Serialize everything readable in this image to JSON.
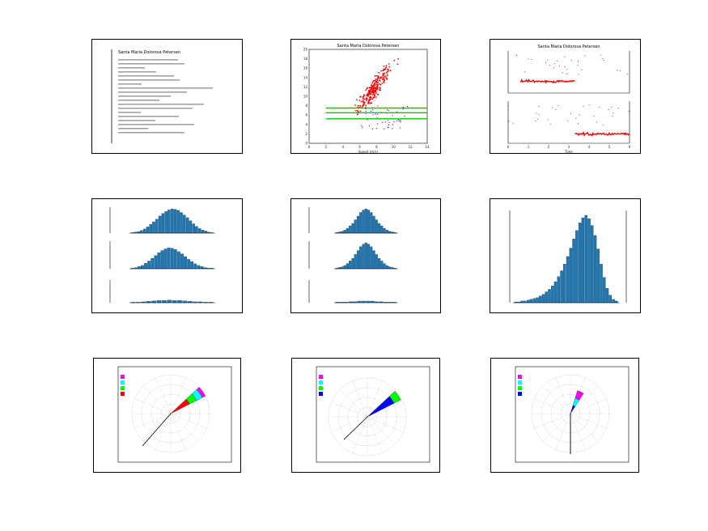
{
  "panels": [
    {
      "type": "table",
      "title": "Santa Maria Dolorosa Petersen",
      "lines": [
        "",
        "",
        "",
        "",
        "",
        "",
        "",
        "",
        "",
        "",
        "",
        "",
        "",
        "",
        "",
        "",
        "",
        "",
        ""
      ]
    },
    {
      "type": "scatter",
      "title": "Santa Maria Dolorosa Petersen",
      "xlabel": "Speed (m/s)",
      "ylabel": "",
      "xlim": [
        0,
        14
      ],
      "ylim": [
        0,
        20
      ],
      "xticks": [
        0,
        2,
        4,
        6,
        8,
        10,
        12,
        14
      ],
      "yticks": [
        0,
        2,
        4,
        6,
        8,
        10,
        12,
        14,
        16,
        18,
        20
      ],
      "series": [
        {
          "name": "",
          "color": "#ff0000"
        },
        {
          "name": "",
          "color": "#0000ff"
        }
      ],
      "hlines": [
        5.2,
        6.5,
        7.5
      ],
      "hline_color": "#00cc00"
    },
    {
      "type": "line",
      "title": "Santa Maria Dolorosa Petersen",
      "xlabel": "Time",
      "xticks": [
        0,
        1,
        2,
        3,
        4,
        5,
        6
      ],
      "colors": [
        "#ff0000",
        "#0000ff"
      ]
    },
    {
      "type": "bar",
      "title": "",
      "subplots": 3,
      "values": [
        [
          1,
          2,
          3,
          5,
          8,
          12,
          17,
          22,
          27,
          33,
          38,
          42,
          45,
          47,
          46,
          44,
          40,
          35,
          30,
          24,
          18,
          13,
          9,
          6,
          4,
          2,
          1
        ],
        [
          1,
          2,
          4,
          6,
          10,
          14,
          19,
          24,
          29,
          33,
          36,
          38,
          37,
          35,
          31,
          27,
          22,
          17,
          13,
          9,
          6,
          4,
          2,
          1,
          1
        ],
        [
          1,
          1,
          2,
          3,
          4,
          5,
          5,
          6,
          5,
          5,
          4,
          3,
          2,
          2,
          1,
          1
        ]
      ],
      "color": "#1f77b4"
    },
    {
      "type": "bar",
      "title": "",
      "subplots": 3,
      "values": [
        [
          1,
          2,
          3,
          5,
          8,
          12,
          16,
          22,
          28,
          34,
          38,
          40,
          38,
          34,
          28,
          22,
          16,
          12,
          8,
          5,
          3,
          2,
          1
        ],
        [
          1,
          2,
          3,
          5,
          8,
          12,
          16,
          22,
          28,
          34,
          38,
          40,
          38,
          34,
          28,
          22,
          16,
          12,
          8,
          5,
          3,
          2,
          1
        ],
        [
          1,
          1,
          1,
          2,
          2,
          3,
          3,
          3,
          3,
          2,
          2,
          1,
          1,
          1
        ]
      ],
      "color": "#1f77b4"
    },
    {
      "type": "bar",
      "title": "",
      "values": [
        1,
        1,
        2,
        2,
        3,
        4,
        5,
        6,
        8,
        10,
        13,
        16,
        20,
        25,
        31,
        38,
        46,
        55,
        65,
        76,
        86,
        95,
        101,
        104,
        100,
        92,
        80,
        64,
        46,
        30,
        17,
        9,
        4,
        2
      ],
      "color": "#1f77b4"
    },
    {
      "type": "polar",
      "title": "",
      "wedges": [
        {
          "angle": 55,
          "r0": 0,
          "r1": 0.55,
          "color": "#ff0000"
        },
        {
          "angle": 55,
          "r0": 0.55,
          "r1": 0.75,
          "color": "#00ff00"
        },
        {
          "angle": 55,
          "r0": 0.75,
          "r1": 0.92,
          "color": "#00ffff"
        },
        {
          "angle": 55,
          "r0": 0.92,
          "r1": 1.0,
          "color": "#ff00ff"
        }
      ],
      "legend_colors": [
        "#ff00ff",
        "#00ffff",
        "#00ff00",
        "#ff0000"
      ]
    },
    {
      "type": "polar",
      "title": "",
      "wedges": [
        {
          "angle": 55,
          "r0": 0,
          "r1": 0.78,
          "color": "#0000ff"
        },
        {
          "angle": 55,
          "r0": 0.78,
          "r1": 0.97,
          "color": "#00ff00"
        }
      ],
      "legend_colors": [
        "#ff00ff",
        "#00ffff",
        "#00ff00",
        "#0000ff"
      ]
    },
    {
      "type": "polar",
      "title": "",
      "wedges": [
        {
          "angle": 25,
          "r0": 0,
          "r1": 0.22,
          "color": "#0000ff"
        },
        {
          "angle": 25,
          "r0": 0.22,
          "r1": 0.42,
          "color": "#00ffff"
        },
        {
          "angle": 25,
          "r0": 0.42,
          "r1": 0.62,
          "color": "#ff00ff"
        }
      ],
      "legend_colors": [
        "#ff00ff",
        "#00ffff",
        "#00ff00",
        "#0000ff"
      ]
    }
  ]
}
